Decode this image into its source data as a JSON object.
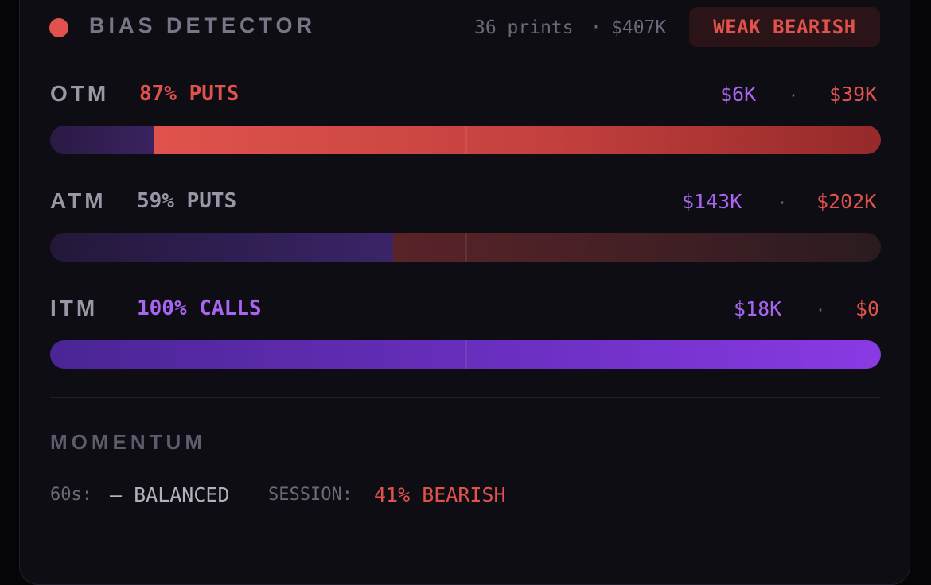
{
  "header": {
    "title": "BIAS DETECTOR",
    "prints": "36 prints",
    "separator": "·",
    "total": "$407K",
    "badge": "WEAK BEARISH",
    "status_color": "#e0534c"
  },
  "rows": [
    {
      "label": "OTM",
      "value": "87% PUTS",
      "call_amount": "$6K",
      "put_amount": "$39K",
      "separator": "·",
      "put_fraction": 0.87
    },
    {
      "label": "ATM",
      "value": "59% PUTS",
      "call_amount": "$143K",
      "put_amount": "$202K",
      "separator": "·",
      "put_fraction": 0.59
    },
    {
      "label": "ITM",
      "value": "100% CALLS",
      "call_amount": "$18K",
      "put_amount": "$0",
      "separator": "·",
      "put_fraction": 0.0
    }
  ],
  "momentum": {
    "title": "MOMENTUM",
    "window_label": "60s:",
    "window_value": "— BALANCED",
    "session_label": "SESSION:",
    "session_value": "41% BEARISH"
  },
  "colors": {
    "call": "#a765f2",
    "put": "#e0534c",
    "neutral": "#9a96a6"
  }
}
